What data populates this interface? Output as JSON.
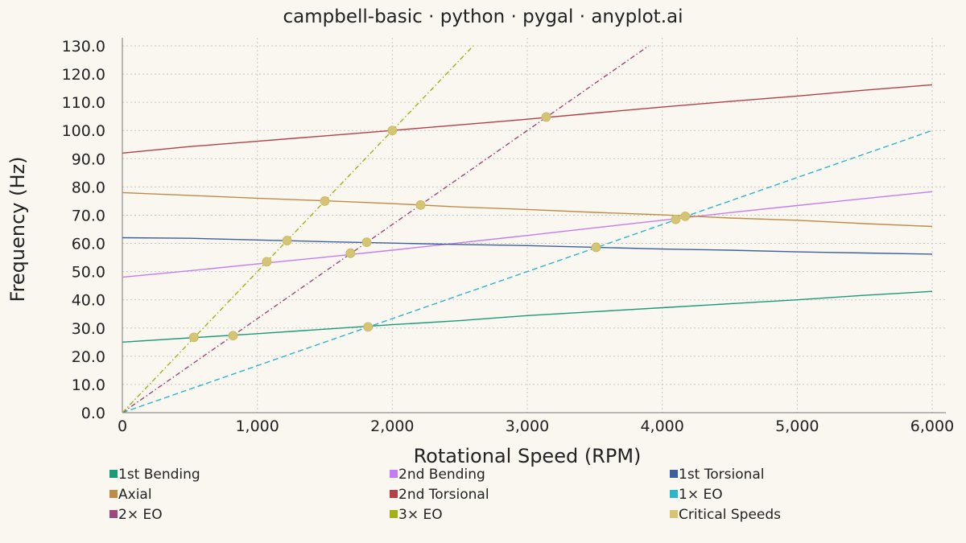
{
  "chart_data": {
    "type": "line",
    "title": "campbell-basic · python · pygal · anyplot.ai",
    "xlabel": "Rotational Speed (RPM)",
    "ylabel": "Frequency (Hz)",
    "xlim": [
      0,
      6000
    ],
    "ylim": [
      0,
      130
    ],
    "x_ticks": [
      0,
      1000,
      2000,
      3000,
      4000,
      5000,
      6000
    ],
    "x_tick_labels": [
      "0",
      "1,000",
      "2,000",
      "3,000",
      "4,000",
      "5,000",
      "6,000"
    ],
    "y_ticks": [
      0,
      10,
      20,
      30,
      40,
      50,
      60,
      70,
      80,
      90,
      100,
      110,
      120,
      130
    ],
    "y_tick_labels": [
      "0.0",
      "10.0",
      "20.0",
      "30.0",
      "40.0",
      "50.0",
      "60.0",
      "70.0",
      "80.0",
      "90.0",
      "100.0",
      "110.0",
      "120.0",
      "130.0"
    ],
    "grid": true,
    "legend_position": "bottom",
    "series": [
      {
        "name": "1st Bending",
        "color": "#1a9a78",
        "style": "solid",
        "x": [
          0,
          500,
          1000,
          1500,
          2000,
          2500,
          3000,
          3500,
          4000,
          4500,
          5000,
          5500,
          6000
        ],
        "y": [
          25,
          26.5,
          28,
          29.6,
          31.2,
          32.6,
          34.4,
          35.8,
          37.2,
          38.6,
          40,
          41.6,
          43
        ]
      },
      {
        "name": "2nd Bending",
        "color": "#c47df0",
        "style": "solid",
        "x": [
          0,
          500,
          1000,
          1500,
          2000,
          2500,
          3000,
          3500,
          4000,
          4500,
          5000,
          5500,
          6000
        ],
        "y": [
          48,
          50.3,
          52.7,
          55.1,
          57.6,
          60.2,
          62.8,
          65.5,
          68.2,
          70.9,
          73.4,
          75.9,
          78.3
        ]
      },
      {
        "name": "1st Torsional",
        "color": "#3b5f9f",
        "style": "solid",
        "x": [
          0,
          500,
          1000,
          1500,
          2000,
          2500,
          3000,
          3500,
          4000,
          4500,
          5000,
          5500,
          6000
        ],
        "y": [
          62,
          61.8,
          61.2,
          60.6,
          60.1,
          59.6,
          59.2,
          58.6,
          58,
          57.6,
          57,
          56.6,
          56.2
        ]
      },
      {
        "name": "Axial",
        "color": "#c08a45",
        "style": "solid",
        "x": [
          0,
          500,
          1000,
          1500,
          2000,
          2500,
          3000,
          3500,
          4000,
          4500,
          5000,
          5500,
          6000
        ],
        "y": [
          78,
          77,
          76,
          75.1,
          74.1,
          72.9,
          72,
          71,
          70.1,
          69,
          68.2,
          67,
          66
        ]
      },
      {
        "name": "2nd Torsional",
        "color": "#b34045",
        "style": "solid",
        "x": [
          0,
          500,
          1000,
          1500,
          2000,
          2500,
          3000,
          3500,
          4000,
          4500,
          5000,
          5500,
          6000
        ],
        "y": [
          92,
          94.3,
          96.2,
          98.1,
          100,
          102,
          104,
          106.2,
          108.3,
          110.3,
          112.2,
          114.3,
          116.2
        ]
      },
      {
        "name": "1× EO",
        "color": "#2bb6c9",
        "style": "dashed",
        "x": [
          0,
          6000
        ],
        "y": [
          0,
          100
        ]
      },
      {
        "name": "2× EO",
        "color": "#9c4a7c",
        "style": "dashdot",
        "x": [
          0,
          3900
        ],
        "y": [
          0,
          130
        ]
      },
      {
        "name": "3× EO",
        "color": "#a3b118",
        "style": "dashdot",
        "x": [
          0,
          2600
        ],
        "y": [
          0,
          130
        ]
      },
      {
        "name": "Critical Speeds",
        "color": "#d4c474",
        "style": "markers",
        "x": [
          530,
          820,
          1070,
          1220,
          1500,
          1690,
          1810,
          1820,
          2000,
          2210,
          3140,
          3510,
          4100,
          4170
        ],
        "y": [
          26.7,
          27.3,
          53.5,
          61,
          75,
          56.5,
          60.4,
          30.4,
          100,
          73.6,
          104.8,
          58.6,
          68.5,
          69.6
        ]
      }
    ]
  }
}
